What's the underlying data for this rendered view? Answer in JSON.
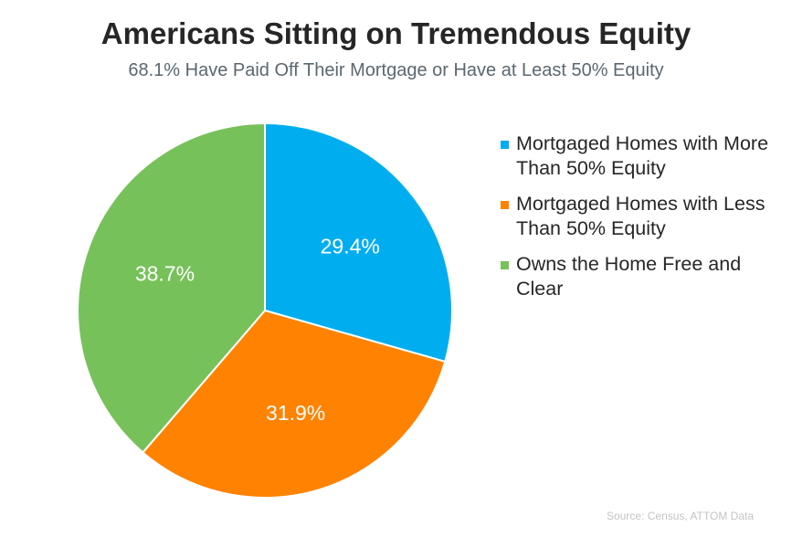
{
  "chart_data": {
    "type": "pie",
    "title": "Americans Sitting on Tremendous Equity",
    "subtitle": "68.1% Have Paid Off Their Mortgage or Have at Least 50% Equity",
    "slices": [
      {
        "label": "Mortgaged Homes with More Than 50% Equity",
        "value": 29.4,
        "value_label": "29.4%",
        "color": "#00aeef"
      },
      {
        "label": "Mortgaged Homes with Less Than 50% Equity",
        "value": 31.9,
        "value_label": "31.9%",
        "color": "#ff8200"
      },
      {
        "label": "Owns the Home Free and Clear",
        "value": 38.7,
        "value_label": "38.7%",
        "color": "#77c15a"
      }
    ],
    "legend_position": "right",
    "source": "Source: Census, ATTOM Data"
  }
}
